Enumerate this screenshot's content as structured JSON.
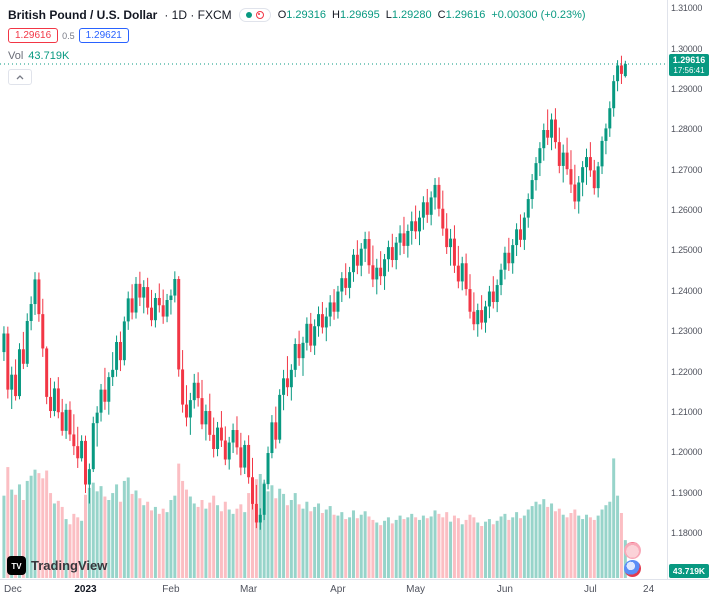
{
  "header": {
    "symbol": "British Pound / U.S. Dollar",
    "interval_exchange": "· 1D · FXCM",
    "ohlc": {
      "o_label": "O",
      "o": "1.29316",
      "h_label": "H",
      "h": "1.29695",
      "l_label": "L",
      "l": "1.29280",
      "c_label": "C",
      "c": "1.29616",
      "change": "+0.00300 (+0.23%)"
    },
    "sell_price": "1.29616",
    "spread": "0.5",
    "buy_price": "1.29621",
    "vol_label": "Vol",
    "vol_value": "43.719K"
  },
  "price_axis": {
    "last_price": "1.29616",
    "last_time": "17:56:41",
    "volume_tag": "43.719K"
  },
  "footer": {
    "logo_mark": "TV",
    "logo_text": "TradingView"
  },
  "chart_data": {
    "type": "candlestick",
    "title": "British Pound / U.S. Dollar · 1D · FXCM",
    "symbol": "GBP/USD",
    "interval": "1D",
    "exchange": "FXCM",
    "last_price": 1.29616,
    "last_time": "17:56:41",
    "last_candle": {
      "open": 1.29316,
      "high": 1.29695,
      "low": 1.2928,
      "close": 1.29616,
      "change": 0.003,
      "change_pct": 0.23,
      "volume_K": 43.719
    },
    "columns": [
      "open",
      "high",
      "low",
      "close",
      "volume_K"
    ],
    "candles": [
      [
        1.2248,
        1.2312,
        1.2226,
        1.2294,
        95
      ],
      [
        1.2294,
        1.2311,
        1.2133,
        1.2155,
        128
      ],
      [
        1.2155,
        1.2212,
        1.2107,
        1.2192,
        102
      ],
      [
        1.2192,
        1.223,
        1.2128,
        1.2139,
        96
      ],
      [
        1.2139,
        1.227,
        1.2131,
        1.2255,
        108
      ],
      [
        1.2255,
        1.2298,
        1.2206,
        1.2219,
        90
      ],
      [
        1.2219,
        1.2344,
        1.2211,
        1.2325,
        112
      ],
      [
        1.2325,
        1.2386,
        1.2302,
        1.2367,
        118
      ],
      [
        1.2367,
        1.2446,
        1.234,
        1.2428,
        125
      ],
      [
        1.2428,
        1.2445,
        1.2323,
        1.2342,
        121
      ],
      [
        1.2342,
        1.238,
        1.2236,
        1.2257,
        115
      ],
      [
        1.2257,
        1.2262,
        1.2119,
        1.2137,
        124
      ],
      [
        1.2137,
        1.2184,
        1.2085,
        1.2102,
        98
      ],
      [
        1.2102,
        1.2175,
        1.2089,
        1.2158,
        86
      ],
      [
        1.2158,
        1.2186,
        1.2084,
        1.2099,
        89
      ],
      [
        1.2099,
        1.2132,
        1.2041,
        1.2053,
        82
      ],
      [
        1.2053,
        1.212,
        1.2033,
        1.2105,
        68
      ],
      [
        1.2105,
        1.2126,
        1.2028,
        1.2044,
        62
      ],
      [
        1.2044,
        1.2094,
        1.1993,
        1.2015,
        74
      ],
      [
        1.2015,
        1.2063,
        1.1961,
        1.1985,
        70
      ],
      [
        1.1985,
        1.2042,
        1.1977,
        1.2028,
        66
      ],
      [
        1.2028,
        1.2041,
        1.1899,
        1.192,
        96
      ],
      [
        1.192,
        1.1972,
        1.1873,
        1.1958,
        104
      ],
      [
        1.1958,
        1.2088,
        1.1951,
        1.2072,
        110
      ],
      [
        1.2072,
        1.2114,
        1.2014,
        1.2098,
        100
      ],
      [
        1.2098,
        1.2169,
        1.2076,
        1.2155,
        106
      ],
      [
        1.2155,
        1.2209,
        1.2105,
        1.2125,
        94
      ],
      [
        1.2125,
        1.2198,
        1.2093,
        1.2186,
        90
      ],
      [
        1.2186,
        1.2248,
        1.2164,
        1.2204,
        98
      ],
      [
        1.2204,
        1.2289,
        1.2187,
        1.2273,
        108
      ],
      [
        1.2273,
        1.2299,
        1.2201,
        1.2228,
        88
      ],
      [
        1.2228,
        1.2336,
        1.2215,
        1.2324,
        112
      ],
      [
        1.2324,
        1.2398,
        1.2303,
        1.2381,
        116
      ],
      [
        1.2381,
        1.2416,
        1.2329,
        1.2346,
        97
      ],
      [
        1.2346,
        1.2434,
        1.2331,
        1.2417,
        101
      ],
      [
        1.2417,
        1.2447,
        1.2362,
        1.2383,
        92
      ],
      [
        1.2383,
        1.2426,
        1.2344,
        1.2409,
        84
      ],
      [
        1.2409,
        1.2432,
        1.2341,
        1.2358,
        88
      ],
      [
        1.2358,
        1.2402,
        1.2312,
        1.2327,
        78
      ],
      [
        1.2327,
        1.2394,
        1.2309,
        1.2382,
        82
      ],
      [
        1.2382,
        1.2418,
        1.2346,
        1.2364,
        74
      ],
      [
        1.2364,
        1.2403,
        1.2318,
        1.2336,
        80
      ],
      [
        1.2336,
        1.2392,
        1.2322,
        1.2377,
        76
      ],
      [
        1.2377,
        1.2403,
        1.2341,
        1.2388,
        90
      ],
      [
        1.2388,
        1.2448,
        1.2371,
        1.2429,
        95
      ],
      [
        1.2429,
        1.2436,
        1.2187,
        1.2205,
        132
      ],
      [
        1.2205,
        1.2253,
        1.2098,
        1.2118,
        112
      ],
      [
        1.2118,
        1.2166,
        1.2064,
        1.2086,
        102
      ],
      [
        1.2086,
        1.2147,
        1.2043,
        1.2129,
        94
      ],
      [
        1.2129,
        1.2194,
        1.2108,
        1.2172,
        86
      ],
      [
        1.2172,
        1.2198,
        1.2113,
        1.2134,
        82
      ],
      [
        1.2134,
        1.2179,
        1.2057,
        1.2069,
        90
      ],
      [
        1.2069,
        1.2118,
        1.2029,
        1.2102,
        80
      ],
      [
        1.2102,
        1.2145,
        1.2028,
        1.2043,
        87
      ],
      [
        1.2043,
        1.2086,
        1.1987,
        1.2008,
        95
      ],
      [
        1.2008,
        1.2075,
        1.199,
        1.2061,
        84
      ],
      [
        1.2061,
        1.2102,
        1.2013,
        1.2029,
        77
      ],
      [
        1.2029,
        1.2064,
        1.1968,
        1.1982,
        88
      ],
      [
        1.1982,
        1.2038,
        1.1957,
        1.2024,
        79
      ],
      [
        1.2024,
        1.2071,
        1.1998,
        1.2055,
        74
      ],
      [
        1.2055,
        1.2089,
        1.1994,
        1.2012,
        80
      ],
      [
        1.2012,
        1.2048,
        1.1943,
        1.1962,
        85
      ],
      [
        1.1962,
        1.2029,
        1.1946,
        1.2018,
        76
      ],
      [
        1.2018,
        1.2042,
        1.1922,
        1.1938,
        98
      ],
      [
        1.1938,
        1.1986,
        1.1858,
        1.1872,
        106
      ],
      [
        1.1872,
        1.1919,
        1.1812,
        1.1826,
        114
      ],
      [
        1.1826,
        1.1861,
        1.1808,
        1.1845,
        120
      ],
      [
        1.1845,
        1.1932,
        1.1832,
        1.1921,
        110
      ],
      [
        1.1921,
        1.2014,
        1.1908,
        1.1998,
        100
      ],
      [
        1.1998,
        1.2092,
        1.1985,
        1.2074,
        107
      ],
      [
        1.2074,
        1.2113,
        1.2009,
        1.2031,
        92
      ],
      [
        1.2031,
        1.2156,
        1.2022,
        1.2142,
        103
      ],
      [
        1.2142,
        1.2204,
        1.2104,
        1.2183,
        97
      ],
      [
        1.2183,
        1.2238,
        1.2139,
        1.2161,
        84
      ],
      [
        1.2161,
        1.2218,
        1.2128,
        1.2204,
        90
      ],
      [
        1.2204,
        1.2282,
        1.2186,
        1.2268,
        98
      ],
      [
        1.2268,
        1.2301,
        1.2214,
        1.2233,
        85
      ],
      [
        1.2233,
        1.2286,
        1.2189,
        1.2271,
        80
      ],
      [
        1.2271,
        1.2334,
        1.2252,
        1.2318,
        88
      ],
      [
        1.2318,
        1.2345,
        1.2248,
        1.2264,
        77
      ],
      [
        1.2264,
        1.2329,
        1.2241,
        1.2312,
        82
      ],
      [
        1.2312,
        1.2361,
        1.2286,
        1.2342,
        86
      ],
      [
        1.2342,
        1.2372,
        1.2294,
        1.2309,
        75
      ],
      [
        1.2309,
        1.2358,
        1.2275,
        1.2336,
        79
      ],
      [
        1.2336,
        1.2389,
        1.2312,
        1.2371,
        83
      ],
      [
        1.2371,
        1.2404,
        1.2328,
        1.2348,
        73
      ],
      [
        1.2348,
        1.2412,
        1.2331,
        1.2398,
        72
      ],
      [
        1.2398,
        1.2446,
        1.2372,
        1.2431,
        76
      ],
      [
        1.2431,
        1.2468,
        1.2389,
        1.2407,
        68
      ],
      [
        1.2407,
        1.2459,
        1.2381,
        1.2446,
        70
      ],
      [
        1.2446,
        1.2503,
        1.2422,
        1.2489,
        78
      ],
      [
        1.2489,
        1.2525,
        1.2441,
        1.2462,
        69
      ],
      [
        1.2462,
        1.2518,
        1.2436,
        1.2504,
        73
      ],
      [
        1.2504,
        1.2546,
        1.2471,
        1.2528,
        77
      ],
      [
        1.2528,
        1.2547,
        1.2442,
        1.2463,
        71
      ],
      [
        1.2463,
        1.2512,
        1.2409,
        1.2428,
        67
      ],
      [
        1.2428,
        1.2479,
        1.2391,
        1.2457,
        64
      ],
      [
        1.2457,
        1.2498,
        1.2414,
        1.2436,
        61
      ],
      [
        1.2436,
        1.2491,
        1.2402,
        1.2478,
        66
      ],
      [
        1.2478,
        1.2524,
        1.2447,
        1.2508,
        70
      ],
      [
        1.2508,
        1.2541,
        1.2458,
        1.2476,
        63
      ],
      [
        1.2476,
        1.2533,
        1.2453,
        1.2519,
        67
      ],
      [
        1.2519,
        1.2562,
        1.2488,
        1.2542,
        72
      ],
      [
        1.2542,
        1.2583,
        1.2491,
        1.2511,
        68
      ],
      [
        1.2511,
        1.2564,
        1.2482,
        1.2548,
        70
      ],
      [
        1.2548,
        1.2596,
        1.2514,
        1.2572,
        74
      ],
      [
        1.2572,
        1.2611,
        1.2528,
        1.2547,
        70
      ],
      [
        1.2547,
        1.2598,
        1.2513,
        1.2581,
        67
      ],
      [
        1.2581,
        1.2634,
        1.2551,
        1.2619,
        72
      ],
      [
        1.2619,
        1.2652,
        1.2568,
        1.2588,
        69
      ],
      [
        1.2588,
        1.2646,
        1.2562,
        1.2631,
        71
      ],
      [
        1.2631,
        1.2679,
        1.2601,
        1.2662,
        78
      ],
      [
        1.2662,
        1.2681,
        1.2584,
        1.2603,
        74
      ],
      [
        1.2603,
        1.2648,
        1.2536,
        1.2554,
        70
      ],
      [
        1.2554,
        1.2592,
        1.2491,
        1.2508,
        76
      ],
      [
        1.2508,
        1.2553,
        1.2462,
        1.2529,
        65
      ],
      [
        1.2529,
        1.2562,
        1.2444,
        1.2462,
        72
      ],
      [
        1.2462,
        1.2511,
        1.2406,
        1.2423,
        69
      ],
      [
        1.2423,
        1.2484,
        1.2401,
        1.2468,
        62
      ],
      [
        1.2468,
        1.2492,
        1.2388,
        1.2404,
        67
      ],
      [
        1.2404,
        1.2441,
        1.2331,
        1.2348,
        73
      ],
      [
        1.2348,
        1.2396,
        1.2302,
        1.2317,
        70
      ],
      [
        1.2317,
        1.2368,
        1.2286,
        1.2352,
        64
      ],
      [
        1.2352,
        1.2389,
        1.2304,
        1.2321,
        60
      ],
      [
        1.2321,
        1.2375,
        1.2296,
        1.2361,
        65
      ],
      [
        1.2361,
        1.2412,
        1.2332,
        1.2398,
        68
      ],
      [
        1.2398,
        1.2436,
        1.2356,
        1.2372,
        62
      ],
      [
        1.2372,
        1.2428,
        1.2347,
        1.2414,
        66
      ],
      [
        1.2414,
        1.2467,
        1.2389,
        1.2452,
        71
      ],
      [
        1.2452,
        1.2509,
        1.2428,
        1.2494,
        74
      ],
      [
        1.2494,
        1.2531,
        1.2449,
        1.2468,
        67
      ],
      [
        1.2468,
        1.2528,
        1.2442,
        1.2513,
        70
      ],
      [
        1.2513,
        1.2567,
        1.2486,
        1.2552,
        76
      ],
      [
        1.2552,
        1.2589,
        1.2508,
        1.2526,
        69
      ],
      [
        1.2526,
        1.2594,
        1.2501,
        1.2581,
        72
      ],
      [
        1.2581,
        1.2641,
        1.2556,
        1.2627,
        79
      ],
      [
        1.2627,
        1.2689,
        1.2603,
        1.2674,
        83
      ],
      [
        1.2674,
        1.2731,
        1.2648,
        1.2716,
        88
      ],
      [
        1.2716,
        1.2768,
        1.2684,
        1.2753,
        85
      ],
      [
        1.2753,
        1.2814,
        1.2722,
        1.2798,
        91
      ],
      [
        1.2798,
        1.2849,
        1.2761,
        1.2779,
        82
      ],
      [
        1.2779,
        1.2839,
        1.2748,
        1.2824,
        86
      ],
      [
        1.2824,
        1.2852,
        1.2752,
        1.2768,
        77
      ],
      [
        1.2768,
        1.2804,
        1.2691,
        1.2709,
        80
      ],
      [
        1.2709,
        1.2762,
        1.2668,
        1.2742,
        73
      ],
      [
        1.2742,
        1.2779,
        1.2687,
        1.2701,
        70
      ],
      [
        1.2701,
        1.2748,
        1.2642,
        1.2663,
        75
      ],
      [
        1.2663,
        1.2712,
        1.2602,
        1.2621,
        79
      ],
      [
        1.2621,
        1.2684,
        1.2591,
        1.2668,
        72
      ],
      [
        1.2668,
        1.2721,
        1.2634,
        1.2706,
        68
      ],
      [
        1.2706,
        1.2752,
        1.2662,
        1.2731,
        73
      ],
      [
        1.2731,
        1.2768,
        1.2682,
        1.2698,
        70
      ],
      [
        1.2698,
        1.2724,
        1.2638,
        1.2654,
        67
      ],
      [
        1.2654,
        1.2719,
        1.2631,
        1.2708,
        72
      ],
      [
        1.2708,
        1.2782,
        1.2689,
        1.2771,
        79
      ],
      [
        1.2771,
        1.2814,
        1.2738,
        1.2802,
        84
      ],
      [
        1.2802,
        1.2869,
        1.2781,
        1.2852,
        88
      ],
      [
        1.2852,
        1.2934,
        1.2831,
        1.2919,
        138
      ],
      [
        1.2919,
        1.2971,
        1.2894,
        1.2958,
        95
      ],
      [
        1.2958,
        1.2982,
        1.2912,
        1.2937,
        75
      ],
      [
        1.29316,
        1.29695,
        1.2928,
        1.29616,
        43.719
      ]
    ],
    "x_ticks": [
      {
        "label": "Dec",
        "index": 0
      },
      {
        "label": "2023",
        "index": 21,
        "bold": true
      },
      {
        "label": "Feb",
        "index": 43
      },
      {
        "label": "Mar",
        "index": 63
      },
      {
        "label": "Apr",
        "index": 86
      },
      {
        "label": "May",
        "index": 106
      },
      {
        "label": "Jun",
        "index": 129
      },
      {
        "label": "Jul",
        "index": 151
      },
      {
        "label": "24",
        "index": 166
      }
    ],
    "y_ticks": [
      "1.31000",
      "1.30000",
      "1.29000",
      "1.28000",
      "1.27000",
      "1.26000",
      "1.25000",
      "1.24000",
      "1.23000",
      "1.22000",
      "1.21000",
      "1.20000",
      "1.19000",
      "1.18000"
    ],
    "y_range": {
      "top": 1.312,
      "bottom": 1.1686
    },
    "total_slots": 172,
    "volume_scale_max_K": 150,
    "grid": false,
    "colors": {
      "up": "#089981",
      "down": "#F23645",
      "vol_up": "rgba(8,153,129,0.42)",
      "vol_down": "rgba(242,54,69,0.32)",
      "last_price_line": "#089981",
      "label_bg": "#089981"
    }
  }
}
